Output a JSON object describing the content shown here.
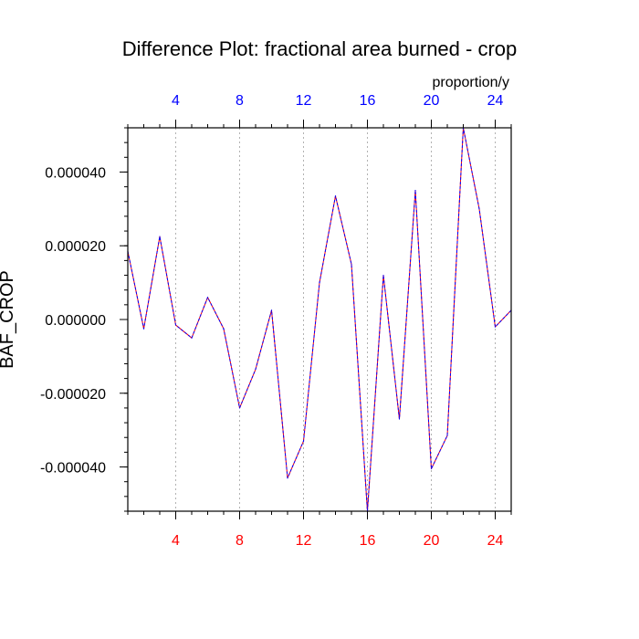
{
  "chart_data": {
    "type": "line",
    "title": "Difference Plot: fractional area burned - crop",
    "ylabel": "BAF_CROP",
    "units": "proportion/y",
    "xlim": [
      1,
      25
    ],
    "ylim": [
      -5.2e-05,
      5.2e-05
    ],
    "x_ticks": [
      4,
      8,
      12,
      16,
      20,
      24
    ],
    "x_tick_labels": [
      "4",
      "8",
      "12",
      "16",
      "20",
      "24"
    ],
    "y_ticks": [
      4e-05,
      2e-05,
      0,
      -2e-05,
      -4e-05
    ],
    "y_tick_labels": [
      "0.000040",
      "0.000020",
      "0.000000",
      "-0.000020",
      "-0.000040"
    ],
    "grid": "vertical dashed at x ticks",
    "series": [
      {
        "color_primary": "#0000ff",
        "color_secondary": "#ff0000",
        "x": [
          1,
          2,
          3,
          4,
          5,
          6,
          7,
          8,
          9,
          10,
          11,
          12,
          13,
          14,
          15,
          16,
          17,
          18,
          19,
          20,
          21,
          22,
          23,
          24,
          25
        ],
        "values": [
          1.85e-05,
          -2.5e-06,
          2.25e-05,
          -1.5e-06,
          -5e-06,
          6e-06,
          -2.5e-06,
          -2.4e-05,
          -1.35e-05,
          2.5e-06,
          -4.3e-05,
          -3.3e-05,
          1e-05,
          3.35e-05,
          1.5e-05,
          -5.2e-05,
          1.2e-05,
          -2.7e-05,
          3.5e-05,
          -4.05e-05,
          -3.15e-05,
          5.2e-05,
          3e-05,
          -2e-06,
          2.5e-06
        ]
      }
    ]
  },
  "colors": {
    "axis": "#000000",
    "grid": "#a0a0a0",
    "bottom_tick_labels": "#ff0000",
    "top_tick_labels": "#0000ff"
  }
}
